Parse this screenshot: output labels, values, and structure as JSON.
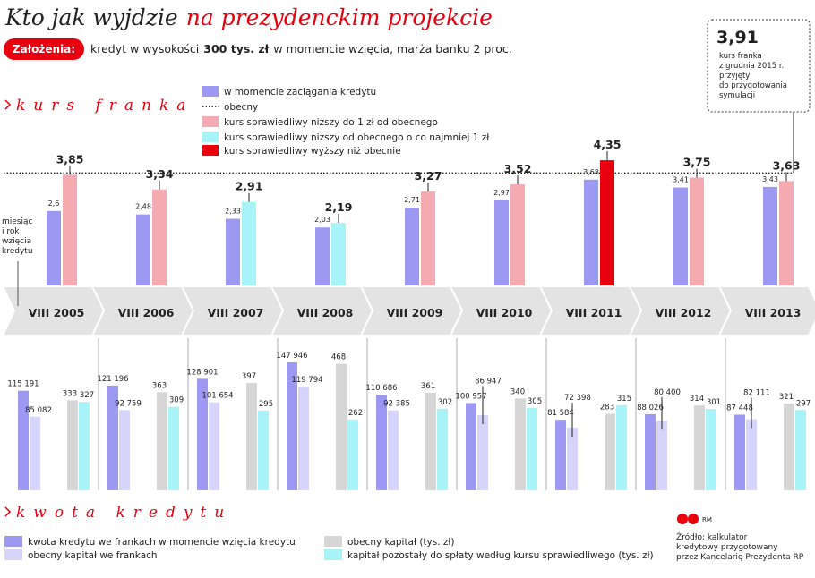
{
  "header": {
    "title": "Kto jak wyjdzie",
    "title_highlight": "na prezydenckim projekcie",
    "assumptions_badge": "Założenia:",
    "assumptions": [
      "kredyt w wysokości",
      "300 tys. zł",
      "w momencie wzięcia, marża banku 2 proc."
    ]
  },
  "chart_data": [
    {
      "type": "bar",
      "section_title": "kurs franka",
      "axis_note": [
        "miesiąc",
        "i rok",
        "wzięcia",
        "kredytu"
      ],
      "categories": [
        "VIII 2005",
        "VIII 2006",
        "VIII 2007",
        "VIII 2008",
        "VIII 2009",
        "VIII 2010",
        "VIII 2011",
        "VIII 2012",
        "VIII 2013"
      ],
      "series": [
        {
          "name": "w momencie zaciągania kredytu",
          "color": "#9d98f2",
          "values": [
            2.6,
            2.48,
            2.33,
            2.03,
            2.71,
            2.97,
            3.68,
            3.41,
            3.43
          ],
          "value_labels": [
            "2,6",
            "2,48",
            "2,33",
            "2,03",
            "2,71",
            "2,97",
            "3,68",
            "3,41",
            "3,43"
          ]
        },
        {
          "name": "kurs sprawiedliwy niższy do 1 zł od obecnego",
          "color": "#f3aab0",
          "values": [
            3.85,
            3.34,
            null,
            null,
            3.27,
            3.52,
            null,
            3.75,
            3.63
          ],
          "value_labels": [
            "3,85",
            "3,34",
            null,
            null,
            "3,27",
            "3,52",
            null,
            "3,75",
            "3,63"
          ]
        },
        {
          "name": "kurs sprawiedliwy niższy od obecnego o co najmniej 1 zł",
          "color": "#a8f3f8",
          "values": [
            null,
            null,
            2.91,
            2.19,
            null,
            null,
            null,
            null,
            null
          ],
          "value_labels": [
            null,
            null,
            "2,91",
            "2,19",
            null,
            null,
            null,
            null,
            null
          ]
        },
        {
          "name": "kurs sprawiedliwy wyższy niż obecnie",
          "color": "#e8000f",
          "values": [
            null,
            null,
            null,
            null,
            null,
            null,
            4.35,
            null,
            null
          ],
          "value_labels": [
            null,
            null,
            null,
            null,
            null,
            null,
            "4,35",
            null,
            null
          ]
        }
      ],
      "ylim": [
        0,
        4.5
      ],
      "reference": {
        "name": "obecny",
        "value": 3.91,
        "label": "3,91",
        "note": [
          "kurs franka",
          "z grudnia 2015 r.",
          "przyjęty",
          "do przygotowania",
          "symulacji"
        ]
      }
    },
    {
      "type": "bar",
      "section_title": "kwota kredytu",
      "series": [
        {
          "name": "kwota kredytu we frankach w momencie wzięcia kredytu",
          "color": "#9d98f2",
          "values": [
            115191,
            121196,
            128901,
            147946,
            110686,
            100957,
            81584,
            88026,
            87448
          ],
          "value_labels": [
            "115 191",
            "121 196",
            "128 901",
            "147 946",
            "110 686",
            "100 957",
            "81 584",
            "88 026",
            "87 448"
          ]
        },
        {
          "name": "obecny kapitał we frankach",
          "color": "#d6d4fb",
          "values": [
            85082,
            92759,
            101654,
            119794,
            92385,
            86947,
            72398,
            80400,
            82111
          ],
          "value_labels": [
            "85 082",
            "92 759",
            "101 654",
            "119 794",
            "92 385",
            "86 947",
            "72 398",
            "80 400",
            "82 111"
          ]
        },
        {
          "name": "obecny kapitał (tys. zł)",
          "color": "#d6d6d6",
          "axis": "y2",
          "values": [
            333,
            363,
            397,
            468,
            361,
            340,
            283,
            314,
            321
          ]
        },
        {
          "name": "kapitał pozostały do spłaty według kursu sprawiedliwego (tys. zł)",
          "color": "#a8f3f8",
          "axis": "y2",
          "values": [
            327,
            309,
            295,
            262,
            302,
            305,
            315,
            301,
            297
          ]
        }
      ],
      "ylim": [
        0,
        150000
      ],
      "y2lim": [
        0,
        480
      ]
    }
  ],
  "footer": {
    "credit": "RM",
    "source": [
      "Źródło: kalkulator",
      "kredytowy przygotowany",
      "przez Kancelarię Prezydenta RP"
    ]
  }
}
